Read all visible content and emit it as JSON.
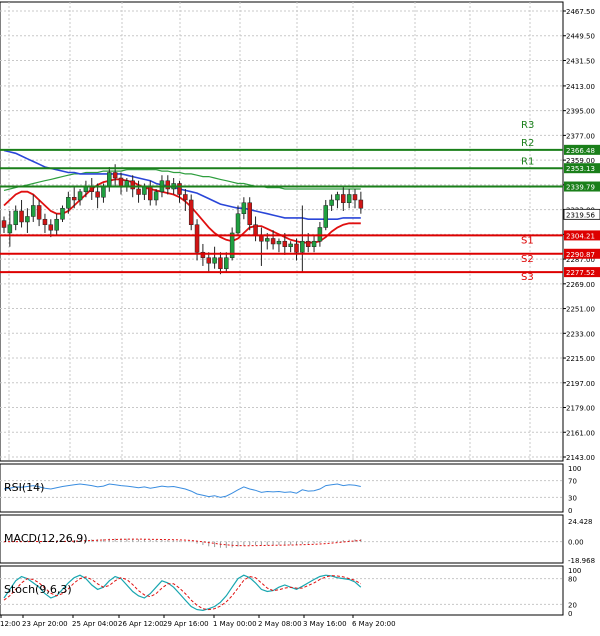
{
  "chart_data": {
    "type": "candlestick",
    "main": {
      "y_ticks": [
        "2467.50",
        "2449.50",
        "2431.50",
        "2413.00",
        "2395.00",
        "2377.00",
        "2359.00",
        "2341.00",
        "2323.00",
        "2305.00",
        "2287.00",
        "2269.00",
        "2251.00",
        "2233.00",
        "2215.00",
        "2197.00",
        "2179.00",
        "2161.00",
        "2143.00"
      ],
      "ylim": [
        2143,
        2467.5
      ],
      "levels": [
        {
          "name": "R3",
          "value": 2366.48,
          "label": "2366.48",
          "color": "#1a7f1a"
        },
        {
          "name": "R2",
          "value": 2353.13,
          "label": "2353.13",
          "color": "#1a7f1a"
        },
        {
          "name": "R1",
          "value": 2339.79,
          "label": "2339.79",
          "color": "#1a7f1a"
        },
        {
          "name": "S1",
          "value": 2304.21,
          "label": "2304.21",
          "color": "#dd0000"
        },
        {
          "name": "S2",
          "value": 2290.87,
          "label": "2290.87",
          "color": "#dd0000"
        },
        {
          "name": "S3",
          "value": 2277.52,
          "label": "2277.52",
          "color": "#dd0000"
        }
      ],
      "current_price": {
        "value": 2319.56,
        "label": "2319.56"
      },
      "candles": [
        [
          2315,
          2318,
          2310,
          2306
        ],
        [
          2306,
          2322,
          2312,
          2296
        ],
        [
          2312,
          2326,
          2322,
          2308
        ],
        [
          2322,
          2330,
          2314,
          2310
        ],
        [
          2314,
          2324,
          2318,
          2306
        ],
        [
          2318,
          2334,
          2326,
          2314
        ],
        [
          2326,
          2330,
          2316,
          2311
        ],
        [
          2316,
          2320,
          2312,
          2306
        ],
        [
          2312,
          2316,
          2308,
          2303
        ],
        [
          2308,
          2320,
          2316,
          2304
        ],
        [
          2316,
          2326,
          2324,
          2314
        ],
        [
          2324,
          2336,
          2332,
          2320
        ],
        [
          2332,
          2340,
          2330,
          2324
        ],
        [
          2330,
          2338,
          2336,
          2326
        ],
        [
          2336,
          2344,
          2340,
          2332
        ],
        [
          2340,
          2346,
          2336,
          2330
        ],
        [
          2336,
          2342,
          2332,
          2324
        ],
        [
          2332,
          2342,
          2340,
          2328
        ],
        [
          2340,
          2354,
          2350,
          2336
        ],
        [
          2350,
          2356,
          2346,
          2340
        ],
        [
          2346,
          2350,
          2340,
          2334
        ],
        [
          2340,
          2346,
          2344,
          2336
        ],
        [
          2344,
          2348,
          2338,
          2332
        ],
        [
          2338,
          2344,
          2334,
          2328
        ],
        [
          2334,
          2342,
          2340,
          2330
        ],
        [
          2340,
          2344,
          2330,
          2326
        ],
        [
          2330,
          2338,
          2336,
          2326
        ],
        [
          2336,
          2348,
          2344,
          2332
        ],
        [
          2344,
          2348,
          2338,
          2334
        ],
        [
          2338,
          2346,
          2342,
          2334
        ],
        [
          2342,
          2344,
          2334,
          2328
        ],
        [
          2334,
          2338,
          2330,
          2322
        ],
        [
          2330,
          2334,
          2312,
          2308
        ],
        [
          2312,
          2316,
          2292,
          2286
        ],
        [
          2292,
          2298,
          2288,
          2282
        ],
        [
          2288,
          2292,
          2284,
          2278
        ],
        [
          2284,
          2296,
          2288,
          2280
        ],
        [
          2288,
          2292,
          2280,
          2276
        ],
        [
          2280,
          2292,
          2288,
          2278
        ],
        [
          2288,
          2310,
          2306,
          2286
        ],
        [
          2306,
          2326,
          2320,
          2304
        ],
        [
          2320,
          2332,
          2328,
          2316
        ],
        [
          2328,
          2332,
          2312,
          2308
        ],
        [
          2312,
          2318,
          2304,
          2300
        ],
        [
          2304,
          2310,
          2300,
          2282
        ],
        [
          2300,
          2306,
          2302,
          2294
        ],
        [
          2302,
          2308,
          2298,
          2294
        ],
        [
          2298,
          2302,
          2300,
          2292
        ],
        [
          2300,
          2306,
          2296,
          2290
        ],
        [
          2296,
          2300,
          2298,
          2292
        ],
        [
          2298,
          2302,
          2292,
          2286
        ],
        [
          2292,
          2326,
          2300,
          2278
        ],
        [
          2300,
          2306,
          2296,
          2292
        ],
        [
          2296,
          2304,
          2300,
          2292
        ],
        [
          2300,
          2314,
          2310,
          2296
        ],
        [
          2310,
          2330,
          2326,
          2308
        ],
        [
          2326,
          2334,
          2330,
          2322
        ],
        [
          2330,
          2336,
          2334,
          2324
        ],
        [
          2334,
          2340,
          2328,
          2322
        ],
        [
          2328,
          2338,
          2334,
          2324
        ],
        [
          2334,
          2338,
          2330,
          2324
        ],
        [
          2330,
          2336,
          2324,
          2320
        ]
      ],
      "ma_blue": [
        2366,
        2365,
        2364,
        2362,
        2360,
        2358,
        2356,
        2354,
        2353,
        2352,
        2351,
        2350,
        2350,
        2349,
        2349,
        2349,
        2349,
        2349,
        2349,
        2349,
        2349,
        2348,
        2347,
        2346,
        2345,
        2344,
        2342,
        2341,
        2340,
        2339,
        2338,
        2337,
        2336,
        2335,
        2333,
        2331,
        2329,
        2327,
        2326,
        2325,
        2324,
        2324,
        2323,
        2322,
        2321,
        2320,
        2319,
        2318,
        2317,
        2317,
        2317,
        2317,
        2316,
        2316,
        2316,
        2316,
        2316,
        2316,
        2317,
        2317,
        2317,
        2317
      ],
      "ma_red": [
        2326,
        2330,
        2334,
        2336,
        2336,
        2334,
        2330,
        2326,
        2322,
        2320,
        2320,
        2322,
        2326,
        2330,
        2334,
        2338,
        2341,
        2343,
        2344,
        2345,
        2345,
        2344,
        2343,
        2341,
        2339,
        2338,
        2337,
        2336,
        2335,
        2334,
        2332,
        2329,
        2325,
        2320,
        2315,
        2310,
        2306,
        2303,
        2301,
        2300,
        2302,
        2306,
        2310,
        2311,
        2311,
        2309,
        2307,
        2305,
        2303,
        2301,
        2300,
        2299,
        2299,
        2299,
        2300,
        2303,
        2307,
        2310,
        2312,
        2313,
        2313,
        2313
      ],
      "ma_green": [
        2337,
        2338,
        2339,
        2340,
        2341,
        2342,
        2343,
        2344,
        2345,
        2346,
        2347,
        2348,
        2349,
        2349,
        2350,
        2350,
        2350,
        2351,
        2351,
        2351,
        2351,
        2352,
        2352,
        2352,
        2352,
        2352,
        2352,
        2351,
        2351,
        2350,
        2350,
        2349,
        2349,
        2348,
        2347,
        2347,
        2346,
        2345,
        2344,
        2343,
        2342,
        2342,
        2341,
        2340,
        2340,
        2339,
        2339,
        2339,
        2338,
        2338,
        2338,
        2338,
        2338,
        2338,
        2338,
        2338,
        2338,
        2338,
        2338,
        2338,
        2338,
        2338
      ]
    },
    "x_labels": [
      "12:00",
      "23 Apr 20:00",
      "25 Apr 04:00",
      "26 Apr 12:00",
      "29 Apr 16:00",
      "1 May 00:00",
      "2 May 08:00",
      "3 May 16:00",
      "6 May 20:00"
    ],
    "rsi": {
      "title": "RSI(14)",
      "y_ticks": [
        "100",
        "70",
        "30",
        "0"
      ],
      "ylim": [
        0,
        100
      ],
      "values": [
        50,
        52,
        55,
        54,
        56,
        58,
        55,
        52,
        50,
        53,
        56,
        58,
        60,
        62,
        60,
        58,
        55,
        57,
        62,
        60,
        58,
        57,
        55,
        53,
        55,
        52,
        54,
        57,
        55,
        56,
        53,
        50,
        45,
        38,
        35,
        32,
        34,
        30,
        33,
        40,
        48,
        55,
        50,
        47,
        42,
        44,
        43,
        44,
        42,
        43,
        40,
        48,
        45,
        46,
        50,
        58,
        60,
        62,
        58,
        60,
        59,
        56
      ]
    },
    "macd": {
      "title": "MACD(12,26,9)",
      "y_ticks": [
        "24.428",
        "0.00",
        "-18.968"
      ],
      "ylim": [
        -18.968,
        24.428
      ],
      "histogram": [
        -1,
        -0.8,
        -0.5,
        -0.2,
        0.1,
        0.3,
        0.2,
        0,
        -0.2,
        -0.1,
        0.2,
        0.6,
        1,
        1.5,
        2,
        2.3,
        2.4,
        2.6,
        3,
        3.2,
        3.2,
        3,
        2.8,
        2.5,
        2.3,
        2,
        1.8,
        1.8,
        1.6,
        1.4,
        1,
        0.5,
        -0.5,
        -2,
        -3.5,
        -4.8,
        -5.6,
        -6.3,
        -6.6,
        -6,
        -5,
        -4,
        -3.6,
        -3.4,
        -3.6,
        -3.6,
        -3.5,
        -3.4,
        -3.3,
        -3.2,
        -3,
        -2.5,
        -2.2,
        -1.9,
        -1.4,
        -0.5,
        0.3,
        1,
        1.6,
        2,
        2.4,
        2.6
      ],
      "signal": [
        0,
        0,
        0,
        0,
        0,
        0.1,
        0.1,
        0.1,
        0.1,
        0.1,
        0.2,
        0.3,
        0.5,
        0.7,
        1,
        1.2,
        1.5,
        1.7,
        2,
        2.2,
        2.4,
        2.5,
        2.6,
        2.6,
        2.5,
        2.4,
        2.3,
        2.2,
        2.1,
        2,
        1.8,
        1.6,
        1.2,
        0.6,
        -0.2,
        -1,
        -1.8,
        -2.6,
        -3.3,
        -3.8,
        -4.1,
        -4.2,
        -4.2,
        -4.1,
        -4,
        -3.9,
        -3.8,
        -3.7,
        -3.6,
        -3.5,
        -3.4,
        -3.2,
        -3,
        -2.7,
        -2.4,
        -2,
        -1.5,
        -1,
        -0.4,
        0.2,
        0.8,
        1.4
      ]
    },
    "stoch": {
      "title": "Stoch(9,6,3)",
      "y_ticks": [
        "100",
        "80",
        "20",
        "0"
      ],
      "ylim": [
        0,
        100
      ],
      "k": [
        35,
        55,
        75,
        85,
        80,
        70,
        60,
        45,
        35,
        40,
        55,
        70,
        82,
        88,
        80,
        65,
        55,
        60,
        75,
        85,
        80,
        65,
        50,
        40,
        35,
        45,
        60,
        75,
        70,
        60,
        45,
        30,
        15,
        8,
        6,
        10,
        15,
        25,
        40,
        60,
        80,
        88,
        82,
        70,
        55,
        50,
        52,
        60,
        65,
        60,
        55,
        62,
        70,
        78,
        85,
        88,
        86,
        82,
        80,
        78,
        72,
        60
      ],
      "d": [
        30,
        40,
        55,
        70,
        80,
        78,
        70,
        58,
        46,
        40,
        45,
        56,
        70,
        80,
        84,
        78,
        68,
        60,
        64,
        75,
        82,
        78,
        66,
        52,
        42,
        38,
        45,
        58,
        68,
        68,
        58,
        45,
        30,
        18,
        10,
        8,
        10,
        16,
        26,
        40,
        58,
        76,
        85,
        82,
        70,
        58,
        52,
        54,
        58,
        60,
        58,
        58,
        64,
        70,
        78,
        84,
        87,
        86,
        84,
        80,
        76,
        68
      ]
    }
  }
}
